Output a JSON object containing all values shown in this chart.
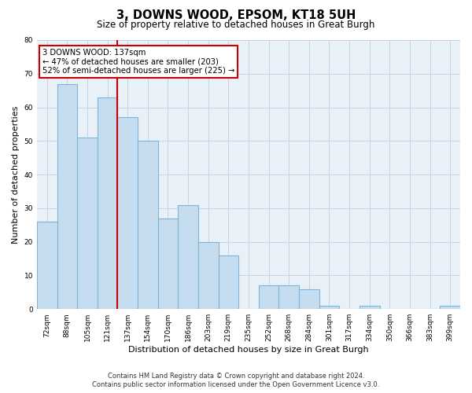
{
  "title": "3, DOWNS WOOD, EPSOM, KT18 5UH",
  "subtitle": "Size of property relative to detached houses in Great Burgh",
  "xlabel": "Distribution of detached houses by size in Great Burgh",
  "ylabel": "Number of detached properties",
  "footer_line1": "Contains HM Land Registry data © Crown copyright and database right 2024.",
  "footer_line2": "Contains public sector information licensed under the Open Government Licence v3.0.",
  "bin_labels": [
    "72sqm",
    "88sqm",
    "105sqm",
    "121sqm",
    "137sqm",
    "154sqm",
    "170sqm",
    "186sqm",
    "203sqm",
    "219sqm",
    "235sqm",
    "252sqm",
    "268sqm",
    "284sqm",
    "301sqm",
    "317sqm",
    "334sqm",
    "350sqm",
    "366sqm",
    "383sqm",
    "399sqm"
  ],
  "bar_heights": [
    26,
    67,
    51,
    63,
    57,
    50,
    27,
    31,
    20,
    16,
    0,
    7,
    7,
    6,
    1,
    0,
    1,
    0,
    0,
    0,
    1
  ],
  "bar_color": "#c6ddef",
  "bar_edge_color": "#7fb4d4",
  "property_line_color": "#cc0000",
  "annotation_text": "3 DOWNS WOOD: 137sqm\n← 47% of detached houses are smaller (203)\n52% of semi-detached houses are larger (225) →",
  "annotation_box_color": "#ffffff",
  "annotation_box_edge_color": "#cc0000",
  "ylim": [
    0,
    80
  ],
  "yticks": [
    0,
    10,
    20,
    30,
    40,
    50,
    60,
    70,
    80
  ],
  "plot_bg_color": "#e8f0f8",
  "background_color": "#ffffff",
  "grid_color": "#c8d4e0"
}
